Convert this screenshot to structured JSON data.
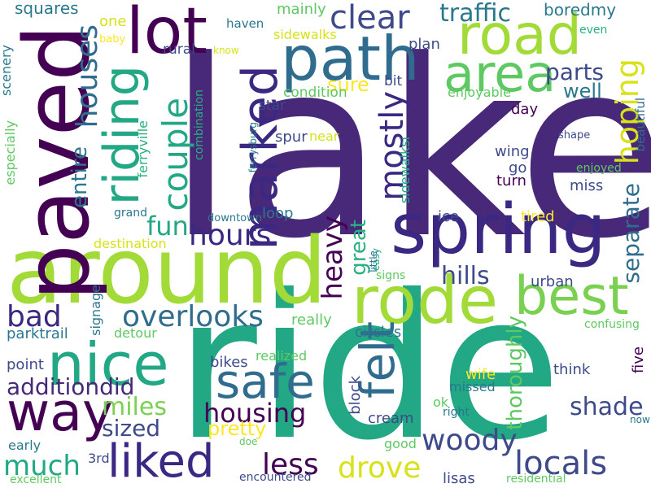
{
  "palette": {
    "dark_purple": "#440154",
    "indigo": "#3b2883",
    "blue": "#2f6c8e",
    "teal": "#21918c",
    "green": "#22a884",
    "lime": "#7ad151",
    "yellow_green": "#a7d833",
    "yellow": "#fde725"
  },
  "words": [
    {
      "text": "lake",
      "color": "#482878"
    },
    {
      "text": "ride",
      "color": "#22a884"
    },
    {
      "text": "around",
      "color": "#a2da37"
    },
    {
      "text": "paved",
      "color": "#440154"
    },
    {
      "text": "spring",
      "color": "#3b2883"
    },
    {
      "text": "rode",
      "color": "#a2da37"
    },
    {
      "text": "path",
      "color": "#2f6c8e"
    },
    {
      "text": "road",
      "color": "#a2da37"
    },
    {
      "text": "lot",
      "color": "#440154"
    },
    {
      "text": "area",
      "color": "#5ec962"
    },
    {
      "text": "marked",
      "color": "#3b2883"
    },
    {
      "text": "riding",
      "color": "#22a884"
    },
    {
      "text": "nice",
      "color": "#22a884"
    },
    {
      "text": "way",
      "color": "#440154"
    },
    {
      "text": "safe",
      "color": "#2f6c8e"
    },
    {
      "text": "best",
      "color": "#7ad151"
    },
    {
      "text": "liked",
      "color": "#3b2883"
    },
    {
      "text": "couple",
      "color": "#22a884"
    },
    {
      "text": "clear",
      "color": "#3e4a89"
    },
    {
      "text": "traffic",
      "color": "#2a788e"
    },
    {
      "text": "mostly",
      "color": "#3b2883"
    },
    {
      "text": "hoping",
      "color": "#d8e219"
    },
    {
      "text": "parts",
      "color": "#3e4a89"
    },
    {
      "text": "sure",
      "color": "#fde725"
    },
    {
      "text": "well",
      "color": "#2a788e"
    },
    {
      "text": "houses",
      "color": "#2f6c8e"
    },
    {
      "text": "entire",
      "color": "#2a788e"
    },
    {
      "text": "fun",
      "color": "#22a884"
    },
    {
      "text": "hours",
      "color": "#3b2883"
    },
    {
      "text": "heavy",
      "color": "#440154"
    },
    {
      "text": "great",
      "color": "#2ab07f"
    },
    {
      "text": "felt",
      "color": "#2f6c8e"
    },
    {
      "text": "separate",
      "color": "#2f6c8e"
    },
    {
      "text": "hills",
      "color": "#3e4a89"
    },
    {
      "text": "bad",
      "color": "#3b2883"
    },
    {
      "text": "overlooks",
      "color": "#2f6c8e"
    },
    {
      "text": "additiondid",
      "color": "#482878"
    },
    {
      "text": "miles",
      "color": "#7ad151"
    },
    {
      "text": "sized",
      "color": "#3e4a89"
    },
    {
      "text": "housing",
      "color": "#440154"
    },
    {
      "text": "pretty",
      "color": "#fde725"
    },
    {
      "text": "shade",
      "color": "#3e4a89"
    },
    {
      "text": "much",
      "color": "#22a884"
    },
    {
      "text": "less",
      "color": "#440154"
    },
    {
      "text": "drove",
      "color": "#d8e219"
    },
    {
      "text": "woody",
      "color": "#3e4a89"
    },
    {
      "text": "locals",
      "color": "#3e4a89"
    },
    {
      "text": "thoroughly",
      "color": "#5ec962"
    },
    {
      "text": "squares",
      "color": "#2a788e"
    },
    {
      "text": "one",
      "color": "#d8e219"
    },
    {
      "text": "mainly",
      "color": "#5ec962"
    },
    {
      "text": "boredmy",
      "color": "#2a788e"
    },
    {
      "text": "baby",
      "color": "#fde725"
    },
    {
      "text": "haven",
      "color": "#2a788e"
    },
    {
      "text": "know",
      "color": "#d8e219"
    },
    {
      "text": "sidewalks",
      "color": "#d8e219"
    },
    {
      "text": "plan",
      "color": "#3e4a89"
    },
    {
      "text": "even",
      "color": "#2ab07f"
    },
    {
      "text": "rural",
      "color": "#3e4a89"
    },
    {
      "text": "scenery",
      "color": "#2a788e"
    },
    {
      "text": "condition",
      "color": "#5ec962"
    },
    {
      "text": "bit",
      "color": "#3e4a89"
    },
    {
      "text": "enjoyable",
      "color": "#5ec962"
    },
    {
      "text": "star",
      "color": "#3e4a89"
    },
    {
      "text": "day",
      "color": "#440154"
    },
    {
      "text": "spur",
      "color": "#3e4a89"
    },
    {
      "text": "near",
      "color": "#d8e219"
    },
    {
      "text": "beautiful",
      "color": "#2f6c8e"
    },
    {
      "text": "shape",
      "color": "#3e4a89"
    },
    {
      "text": "especially",
      "color": "#5ec962"
    },
    {
      "text": "ferryville",
      "color": "#2ab07f"
    },
    {
      "text": "combination",
      "color": "#2ab07f"
    },
    {
      "text": "ferrysburg",
      "color": "#2a788e"
    },
    {
      "text": "sidewalksi",
      "color": "#22a884"
    },
    {
      "text": "wing",
      "color": "#3e4a89"
    },
    {
      "text": "go",
      "color": "#3e4a89"
    },
    {
      "text": "turn",
      "color": "#440154"
    },
    {
      "text": "miss",
      "color": "#3e4a89"
    },
    {
      "text": "enjoyed",
      "color": "#5ec962"
    },
    {
      "text": "grand",
      "color": "#2a788e"
    },
    {
      "text": "downtown",
      "color": "#2a788e"
    },
    {
      "text": "loop",
      "color": "#2a788e"
    },
    {
      "text": "ice",
      "color": "#3e4a89"
    },
    {
      "text": "tired",
      "color": "#fde725"
    },
    {
      "text": "destination",
      "color": "#d8e219"
    },
    {
      "text": "easy",
      "color": "#22a884"
    },
    {
      "text": "little",
      "color": "#2a788e"
    },
    {
      "text": "signs",
      "color": "#5ec962"
    },
    {
      "text": "urban",
      "color": "#3e4a89"
    },
    {
      "text": "signage",
      "color": "#2a788e"
    },
    {
      "text": "parktrail",
      "color": "#2a788e"
    },
    {
      "text": "really",
      "color": "#5ec962"
    },
    {
      "text": "circles",
      "color": "#2a788e"
    },
    {
      "text": "confusing",
      "color": "#5ec962"
    },
    {
      "text": "detour",
      "color": "#5ec962"
    },
    {
      "text": "realized",
      "color": "#5ec962"
    },
    {
      "text": "point",
      "color": "#3e4a89"
    },
    {
      "text": "bikes",
      "color": "#3e4a89"
    },
    {
      "text": "block",
      "color": "#3e4a89"
    },
    {
      "text": "wife",
      "color": "#fde725"
    },
    {
      "text": "think",
      "color": "#3e4a89"
    },
    {
      "text": "five",
      "color": "#440154"
    },
    {
      "text": "missed",
      "color": "#2a788e"
    },
    {
      "text": "ok",
      "color": "#5ec962"
    },
    {
      "text": "right",
      "color": "#2a788e"
    },
    {
      "text": "cream",
      "color": "#3e4a89"
    },
    {
      "text": "now",
      "color": "#2a788e"
    },
    {
      "text": "early",
      "color": "#2a788e"
    },
    {
      "text": "3rd",
      "color": "#3e4a89"
    },
    {
      "text": "doe",
      "color": "#5ec962"
    },
    {
      "text": "good",
      "color": "#5ec962"
    },
    {
      "text": "excellent",
      "color": "#5ec962"
    },
    {
      "text": "encountered",
      "color": "#3e4a89"
    },
    {
      "text": "lisas",
      "color": "#3e4a89"
    },
    {
      "text": "residential",
      "color": "#5ec962"
    }
  ]
}
